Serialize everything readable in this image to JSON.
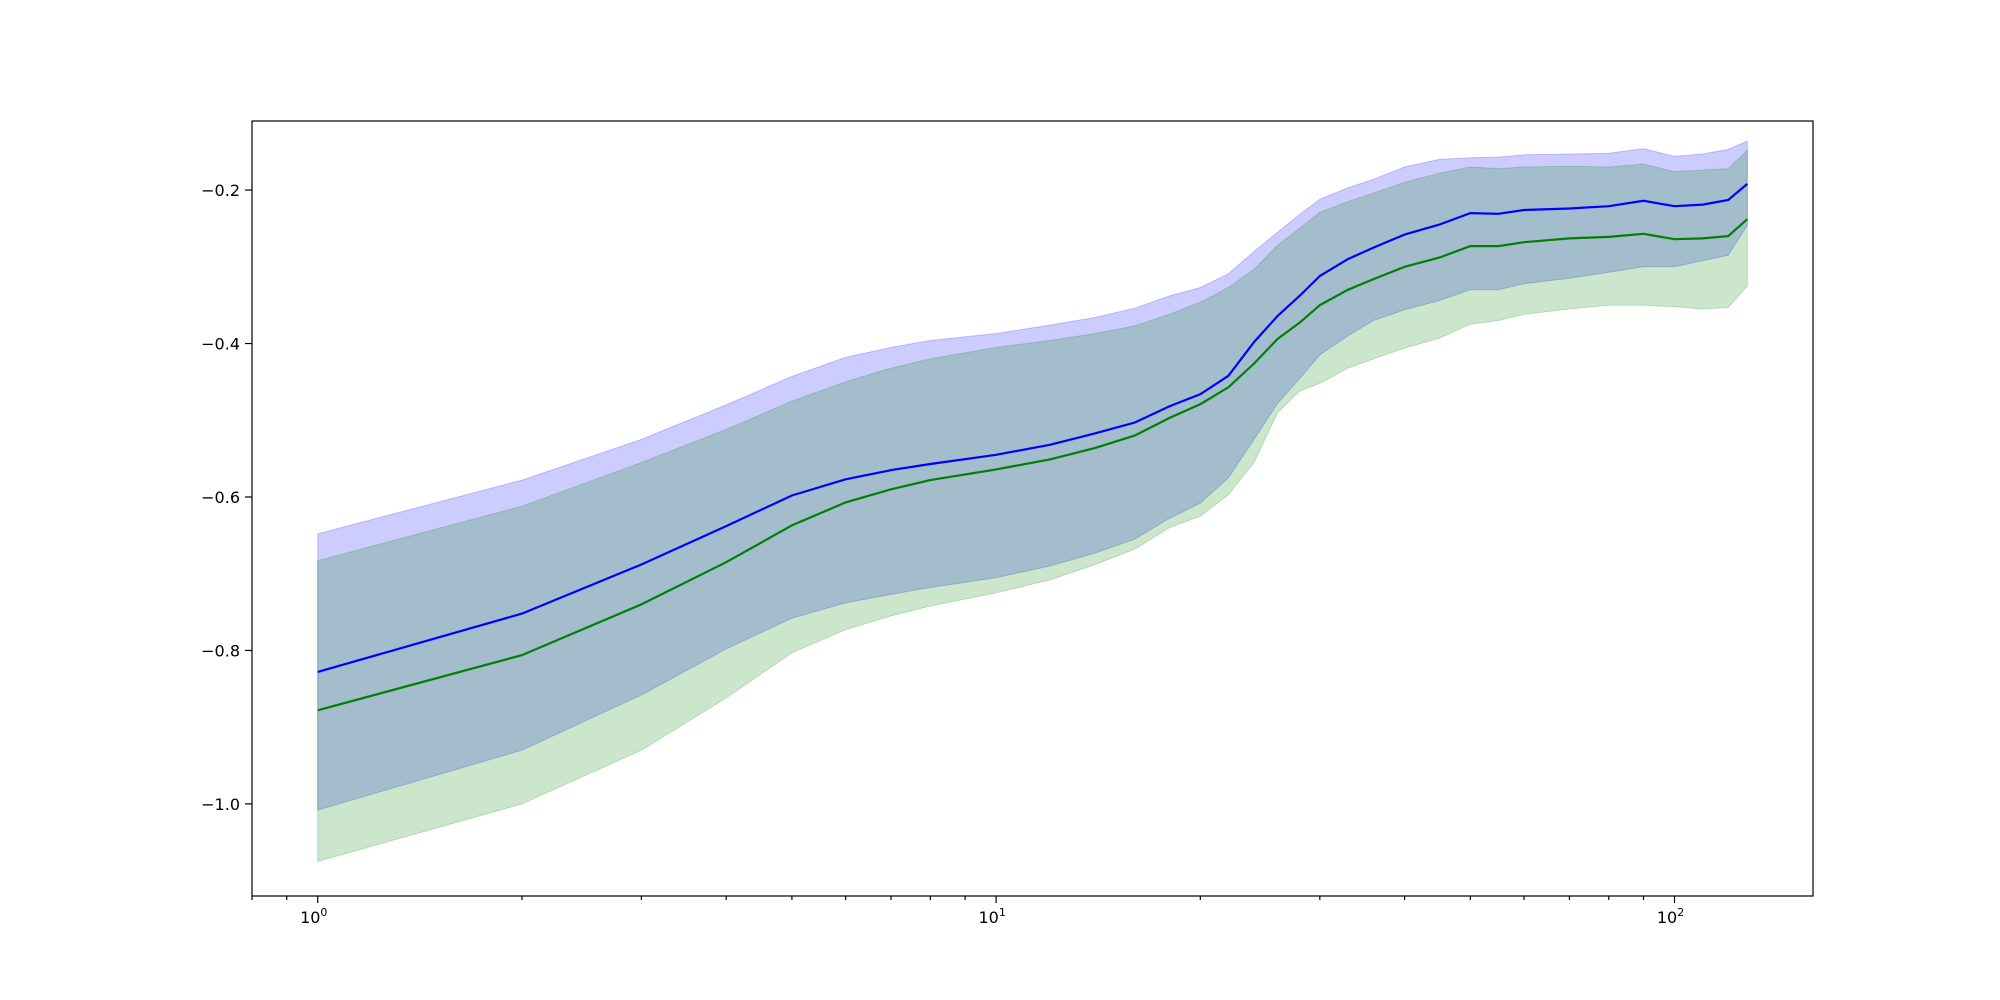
{
  "chart_data": {
    "type": "area",
    "title": "",
    "xlabel": "",
    "ylabel": "",
    "xscale": "log",
    "xlim": [
      0.8,
      160
    ],
    "ylim": [
      -1.12,
      -0.11
    ],
    "grid": false,
    "legend": "none",
    "x_ticks": [
      {
        "value": 1,
        "label": "10^0",
        "base": "10",
        "exp": "0"
      },
      {
        "value": 10,
        "label": "10^1",
        "base": "10",
        "exp": "1"
      },
      {
        "value": 100,
        "label": "10^2",
        "base": "10",
        "exp": "2"
      }
    ],
    "y_ticks": [
      {
        "value": -0.2,
        "label": "−0.2"
      },
      {
        "value": -0.4,
        "label": "−0.4"
      },
      {
        "value": -0.6,
        "label": "−0.6"
      },
      {
        "value": -0.8,
        "label": "−0.8"
      },
      {
        "value": -1.0,
        "label": "−1.0"
      }
    ],
    "x": [
      1,
      2,
      3,
      4,
      5,
      6,
      7,
      8,
      10,
      12,
      14,
      16,
      18,
      20,
      22,
      24,
      26,
      28,
      30,
      33,
      36,
      40,
      45,
      50,
      55,
      60,
      70,
      80,
      90,
      100,
      110,
      120,
      128
    ],
    "series": [
      {
        "color": "#0000ff",
        "band_color": "#0000ff",
        "band_opacity": 0.2,
        "mean": [
          -0.828,
          -0.752,
          -0.688,
          -0.638,
          -0.598,
          -0.577,
          -0.565,
          -0.557,
          -0.545,
          -0.532,
          -0.517,
          -0.503,
          -0.482,
          -0.466,
          -0.442,
          -0.398,
          -0.364,
          -0.338,
          -0.312,
          -0.29,
          -0.275,
          -0.258,
          -0.245,
          -0.23,
          -0.231,
          -0.226,
          -0.224,
          -0.221,
          -0.214,
          -0.221,
          -0.219,
          -0.213,
          -0.192
        ],
        "upper": [
          -0.648,
          -0.578,
          -0.525,
          -0.48,
          -0.443,
          -0.418,
          -0.405,
          -0.396,
          -0.387,
          -0.376,
          -0.366,
          -0.354,
          -0.338,
          -0.327,
          -0.309,
          -0.28,
          -0.255,
          -0.232,
          -0.212,
          -0.197,
          -0.186,
          -0.17,
          -0.16,
          -0.158,
          -0.157,
          -0.154,
          -0.153,
          -0.152,
          -0.146,
          -0.156,
          -0.153,
          -0.147,
          -0.136
        ],
        "lower": [
          -1.008,
          -0.93,
          -0.858,
          -0.798,
          -0.758,
          -0.738,
          -0.727,
          -0.718,
          -0.705,
          -0.69,
          -0.673,
          -0.655,
          -0.628,
          -0.608,
          -0.575,
          -0.525,
          -0.478,
          -0.446,
          -0.415,
          -0.39,
          -0.37,
          -0.356,
          -0.344,
          -0.33,
          -0.33,
          -0.322,
          -0.315,
          -0.307,
          -0.3,
          -0.3,
          -0.292,
          -0.285,
          -0.246
        ]
      },
      {
        "color": "#008000",
        "band_color": "#008000",
        "band_opacity": 0.2,
        "mean": [
          -0.878,
          -0.806,
          -0.74,
          -0.685,
          -0.637,
          -0.607,
          -0.59,
          -0.578,
          -0.564,
          -0.551,
          -0.536,
          -0.52,
          -0.497,
          -0.479,
          -0.457,
          -0.426,
          -0.394,
          -0.373,
          -0.35,
          -0.33,
          -0.316,
          -0.3,
          -0.288,
          -0.273,
          -0.273,
          -0.268,
          -0.263,
          -0.261,
          -0.257,
          -0.264,
          -0.263,
          -0.26,
          -0.238
        ],
        "upper": [
          -0.683,
          -0.612,
          -0.555,
          -0.512,
          -0.475,
          -0.45,
          -0.432,
          -0.42,
          -0.405,
          -0.396,
          -0.387,
          -0.377,
          -0.362,
          -0.346,
          -0.327,
          -0.303,
          -0.272,
          -0.25,
          -0.229,
          -0.215,
          -0.204,
          -0.19,
          -0.178,
          -0.17,
          -0.172,
          -0.17,
          -0.169,
          -0.17,
          -0.166,
          -0.176,
          -0.174,
          -0.172,
          -0.148
        ],
        "lower": [
          -1.075,
          -1.0,
          -0.93,
          -0.862,
          -0.803,
          -0.773,
          -0.755,
          -0.742,
          -0.725,
          -0.708,
          -0.688,
          -0.668,
          -0.64,
          -0.625,
          -0.597,
          -0.555,
          -0.49,
          -0.462,
          -0.452,
          -0.432,
          -0.42,
          -0.406,
          -0.393,
          -0.375,
          -0.37,
          -0.362,
          -0.355,
          -0.35,
          -0.35,
          -0.352,
          -0.355,
          -0.353,
          -0.325
        ]
      }
    ]
  }
}
